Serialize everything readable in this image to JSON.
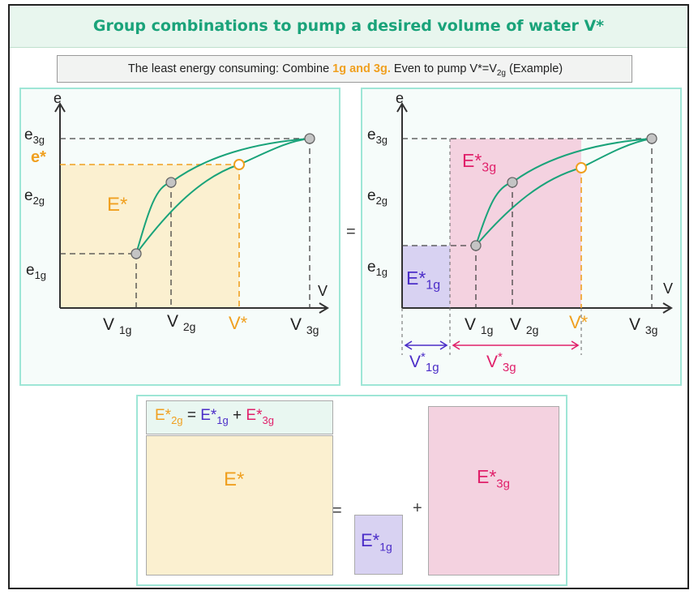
{
  "title": "Group combinations to pump a desired volume of water V*",
  "note": {
    "prefix": "The least energy consuming: Combine ",
    "highlight": "1g and 3g.",
    "suffix_a": " Even to pump V*=V",
    "suffix_sub": "2g",
    "suffix_b": " (Example)"
  },
  "left_chart": {
    "y_axis": "e",
    "x_axis": "V",
    "y_ticks": [
      {
        "base": "e",
        "sub": "3g"
      },
      {
        "base": "e*",
        "sub": ""
      },
      {
        "base": "e",
        "sub": "2g"
      },
      {
        "base": "e",
        "sub": "1g"
      }
    ],
    "x_ticks": [
      {
        "base": "V",
        "sub": "1g"
      },
      {
        "base": "V",
        "sub": "2g"
      },
      {
        "base": "V*",
        "sub": ""
      },
      {
        "base": "V",
        "sub": "3g"
      }
    ],
    "area_label": "E*"
  },
  "equals": "=",
  "right_chart": {
    "y_axis": "e",
    "x_axis": "V",
    "y_ticks": [
      {
        "base": "e",
        "sub": "3g"
      },
      {
        "base": "e",
        "sub": "2g"
      },
      {
        "base": "e",
        "sub": "1g"
      }
    ],
    "x_ticks": [
      {
        "base": "V",
        "sub": "1g"
      },
      {
        "base": "V",
        "sub": "2g"
      },
      {
        "base": "V*",
        "sub": ""
      },
      {
        "base": "V",
        "sub": "3g"
      }
    ],
    "area_1g": {
      "base": "E*",
      "sub": "1g"
    },
    "area_3g": {
      "base": "E*",
      "sub": "3g"
    },
    "span_1g": {
      "base": "V",
      "sup": "*",
      "sub": "1g"
    },
    "span_3g": {
      "base": "V",
      "sup": "*",
      "sub": "3g"
    }
  },
  "formula": {
    "t1": "E*",
    "s1": "2g",
    "eq": " = ",
    "t2": "E*",
    "s2": "1g",
    "plus": " + ",
    "t3": "E*",
    "s3": "3g"
  },
  "bottom": {
    "big_label": "E*",
    "equals": "=",
    "plus": "+",
    "small_label": {
      "base": "E*",
      "sub": "1g"
    },
    "pink_label": {
      "base": "E*",
      "sub": "3g"
    }
  },
  "colors": {
    "green": "#1aa37a",
    "orange": "#f0a020",
    "purple": "#4b2dc8",
    "magenta": "#e0206a",
    "yellow_fill": "#fbf0d0",
    "pink_fill": "#f4d2e0",
    "lavender_fill": "#d8d2f2"
  }
}
